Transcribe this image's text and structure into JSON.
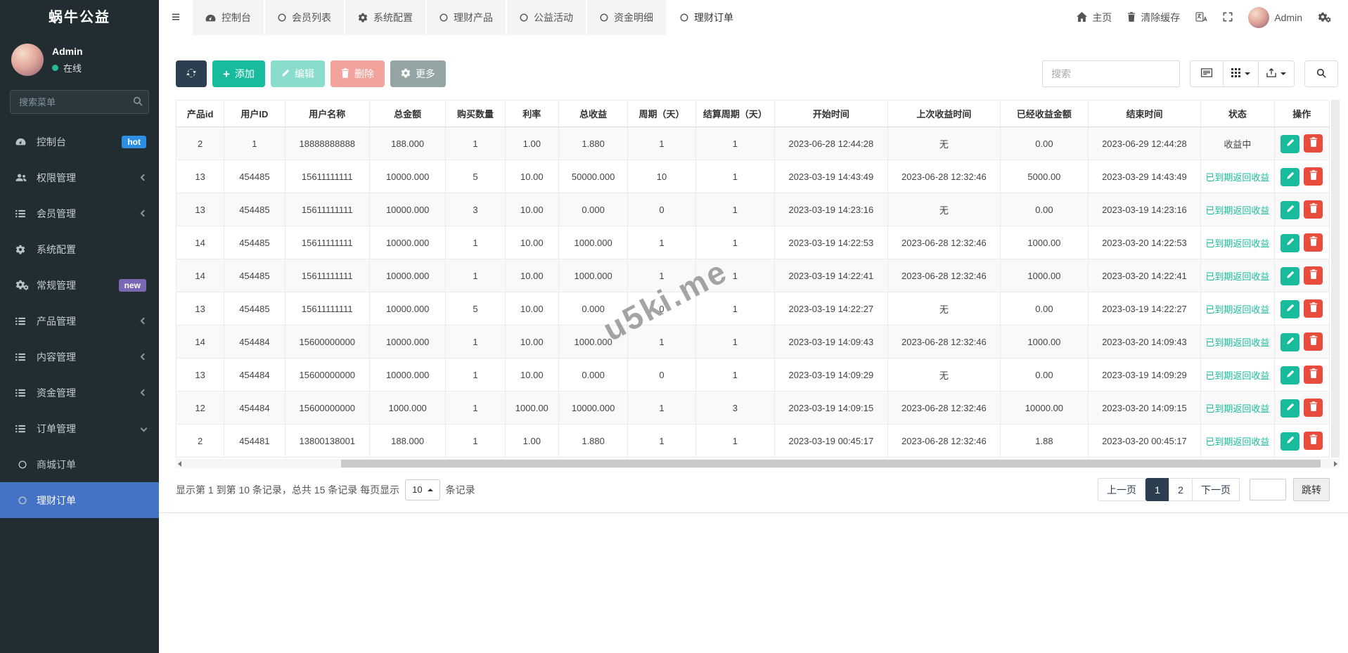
{
  "app": {
    "title": "蜗牛公益"
  },
  "colors": {
    "sidebar_bg": "#222d32",
    "sidebar_active": "#4472c4",
    "hot_badge": "#2d8fe4",
    "new_badge": "#7a68b5",
    "online_dot": "#26b99a",
    "primary_dark": "#2c3e50",
    "success": "#18bc9c",
    "danger": "#e74c3c",
    "secondary": "#95a5a6",
    "status_green": "#18bc9c"
  },
  "sidebar": {
    "user": {
      "name": "Admin",
      "status": "在线"
    },
    "search_placeholder": "搜索菜单",
    "items": [
      {
        "label": "控制台",
        "icon": "gauge",
        "badge": "hot",
        "badge_color": "#2d8fe4"
      },
      {
        "label": "权限管理",
        "icon": "users",
        "chevron": "left"
      },
      {
        "label": "会员管理",
        "icon": "list",
        "chevron": "left"
      },
      {
        "label": "系统配置",
        "icon": "gear"
      },
      {
        "label": "常规管理",
        "icon": "cogs",
        "badge": "new",
        "badge_color": "#7a68b5"
      },
      {
        "label": "产品管理",
        "icon": "list",
        "chevron": "left"
      },
      {
        "label": "内容管理",
        "icon": "list",
        "chevron": "left"
      },
      {
        "label": "资金管理",
        "icon": "list",
        "chevron": "left"
      },
      {
        "label": "订单管理",
        "icon": "list",
        "chevron": "down"
      }
    ],
    "subitems": [
      {
        "label": "商城订单",
        "active": false
      },
      {
        "label": "理财订单",
        "active": true
      }
    ]
  },
  "topbar": {
    "tabs": [
      {
        "label": "控制台",
        "icon": "gauge",
        "active": false
      },
      {
        "label": "会员列表",
        "icon": "circle",
        "active": false
      },
      {
        "label": "系统配置",
        "icon": "gear",
        "active": false
      },
      {
        "label": "理财产品",
        "icon": "circle",
        "active": false
      },
      {
        "label": "公益活动",
        "icon": "circle",
        "active": false
      },
      {
        "label": "资金明细",
        "icon": "circle",
        "active": false
      },
      {
        "label": "理财订单",
        "icon": "circle",
        "active": true
      }
    ],
    "right": {
      "home": "主页",
      "clear_cache": "清除缓存",
      "user": "Admin"
    }
  },
  "toolbar": {
    "add": "添加",
    "edit": "编辑",
    "delete": "删除",
    "more": "更多",
    "search_placeholder": "搜索"
  },
  "table": {
    "columns": [
      "产品id",
      "用户ID",
      "用户名称",
      "总金额",
      "购买数量",
      "利率",
      "总收益",
      "周期（天）",
      "结算周期（天）",
      "开始时间",
      "上次收益时间",
      "已经收益金额",
      "结束时间",
      "状态",
      "操作"
    ],
    "rows": [
      {
        "cells": [
          "2",
          "1",
          "18888888888",
          "188.000",
          "1",
          "1.00",
          "1.880",
          "1",
          "1",
          "2023-06-28 12:44:28",
          "无",
          "0.00",
          "2023-06-29 12:44:28"
        ],
        "status": "收益中",
        "status_green": false
      },
      {
        "cells": [
          "13",
          "454485",
          "15611111111",
          "10000.000",
          "5",
          "10.00",
          "50000.000",
          "10",
          "1",
          "2023-03-19 14:43:49",
          "2023-06-28 12:32:46",
          "5000.00",
          "2023-03-29 14:43:49"
        ],
        "status": "已到期返回收益",
        "status_green": true
      },
      {
        "cells": [
          "13",
          "454485",
          "15611111111",
          "10000.000",
          "3",
          "10.00",
          "0.000",
          "0",
          "1",
          "2023-03-19 14:23:16",
          "无",
          "0.00",
          "2023-03-19 14:23:16"
        ],
        "status": "已到期返回收益",
        "status_green": true
      },
      {
        "cells": [
          "14",
          "454485",
          "15611111111",
          "10000.000",
          "1",
          "10.00",
          "1000.000",
          "1",
          "1",
          "2023-03-19 14:22:53",
          "2023-06-28 12:32:46",
          "1000.00",
          "2023-03-20 14:22:53"
        ],
        "status": "已到期返回收益",
        "status_green": true
      },
      {
        "cells": [
          "14",
          "454485",
          "15611111111",
          "10000.000",
          "1",
          "10.00",
          "1000.000",
          "1",
          "1",
          "2023-03-19 14:22:41",
          "2023-06-28 12:32:46",
          "1000.00",
          "2023-03-20 14:22:41"
        ],
        "status": "已到期返回收益",
        "status_green": true
      },
      {
        "cells": [
          "13",
          "454485",
          "15611111111",
          "10000.000",
          "5",
          "10.00",
          "0.000",
          "0",
          "1",
          "2023-03-19 14:22:27",
          "无",
          "0.00",
          "2023-03-19 14:22:27"
        ],
        "status": "已到期返回收益",
        "status_green": true
      },
      {
        "cells": [
          "14",
          "454484",
          "15600000000",
          "10000.000",
          "1",
          "10.00",
          "1000.000",
          "1",
          "1",
          "2023-03-19 14:09:43",
          "2023-06-28 12:32:46",
          "1000.00",
          "2023-03-20 14:09:43"
        ],
        "status": "已到期返回收益",
        "status_green": true
      },
      {
        "cells": [
          "13",
          "454484",
          "15600000000",
          "10000.000",
          "1",
          "10.00",
          "0.000",
          "0",
          "1",
          "2023-03-19 14:09:29",
          "无",
          "0.00",
          "2023-03-19 14:09:29"
        ],
        "status": "已到期返回收益",
        "status_green": true
      },
      {
        "cells": [
          "12",
          "454484",
          "15600000000",
          "1000.000",
          "1",
          "1000.00",
          "10000.000",
          "1",
          "3",
          "2023-03-19 14:09:15",
          "2023-06-28 12:32:46",
          "10000.00",
          "2023-03-20 14:09:15"
        ],
        "status": "已到期返回收益",
        "status_green": true
      },
      {
        "cells": [
          "2",
          "454481",
          "13800138001",
          "188.000",
          "1",
          "1.00",
          "1.880",
          "1",
          "1",
          "2023-03-19 00:45:17",
          "2023-06-28 12:32:46",
          "1.88",
          "2023-03-20 00:45:17"
        ],
        "status": "已到期返回收益",
        "status_green": true
      }
    ]
  },
  "watermark": "u5ki.me",
  "footer": {
    "summary_prefix": "显示第 1 到第 10 条记录，总共 15 条记录 每页显示",
    "page_size": "10",
    "summary_suffix": "条记录",
    "pagination": {
      "prev": "上一页",
      "pages": [
        "1",
        "2"
      ],
      "active_page": "1",
      "next": "下一页",
      "jump": "跳转"
    }
  }
}
